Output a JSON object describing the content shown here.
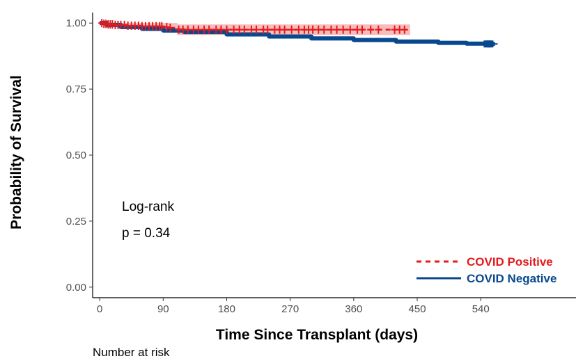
{
  "chart_data": {
    "type": "line",
    "title": "",
    "xlabel": "Time Since Transplant (days)",
    "ylabel": "Probability of Survival",
    "xlim": [
      -10,
      675
    ],
    "ylim": [
      -0.04,
      1.04
    ],
    "x_ticks": [
      0,
      90,
      180,
      270,
      360,
      450,
      540
    ],
    "y_ticks": [
      0.0,
      0.25,
      0.5,
      0.75,
      1.0
    ],
    "x_tick_labels": [
      "0",
      "90",
      "180",
      "270",
      "360",
      "450",
      "540"
    ],
    "y_tick_labels": [
      "0.00",
      "0.25",
      "0.50",
      "0.75",
      "1.00"
    ],
    "grid": false,
    "legend_position": "bottom-right",
    "series": [
      {
        "name": "COVID Positive",
        "color": "#e41a1c",
        "line_style": "dashed",
        "x": [
          0,
          5,
          10,
          20,
          40,
          60,
          90,
          100,
          110,
          130,
          160,
          200,
          250,
          300,
          350,
          380,
          400,
          440
        ],
        "y": [
          1.0,
          0.997,
          0.995,
          0.993,
          0.99,
          0.988,
          0.985,
          0.982,
          0.975,
          0.975,
          0.975,
          0.975,
          0.975,
          0.975,
          0.975,
          0.975,
          0.975,
          0.975
        ],
        "ci_band": {
          "x": [
            0,
            20,
            60,
            100,
            110,
            200,
            300,
            440
          ],
          "lower": [
            0.998,
            0.99,
            0.983,
            0.975,
            0.955,
            0.955,
            0.955,
            0.955
          ],
          "upper": [
            1.0,
            1.0,
            1.0,
            1.0,
            0.995,
            0.995,
            0.995,
            0.995
          ]
        },
        "censor_x": [
          3,
          6,
          9,
          12,
          15,
          18,
          22,
          26,
          30,
          35,
          40,
          45,
          50,
          55,
          60,
          65,
          70,
          75,
          80,
          85,
          88,
          95,
          100,
          112,
          118,
          125,
          133,
          140,
          148,
          155,
          165,
          172,
          180,
          190,
          198,
          205,
          215,
          222,
          232,
          238,
          248,
          255,
          262,
          272,
          282,
          290,
          296,
          302,
          310,
          318,
          328,
          336,
          345,
          355,
          365,
          372,
          384,
          395,
          418,
          425,
          432
        ]
      },
      {
        "name": "COVID Negative",
        "color": "#08488e",
        "line_style": "solid",
        "x": [
          0,
          10,
          30,
          60,
          90,
          120,
          180,
          240,
          300,
          360,
          420,
          480,
          520,
          545,
          560
        ],
        "y": [
          1.0,
          0.993,
          0.985,
          0.978,
          0.972,
          0.966,
          0.957,
          0.949,
          0.942,
          0.936,
          0.93,
          0.925,
          0.922,
          0.921,
          0.921
        ]
      }
    ],
    "annotations": [
      "Log-rank",
      "p = 0.34"
    ]
  },
  "risk_table": {
    "title": "Number at risk"
  }
}
